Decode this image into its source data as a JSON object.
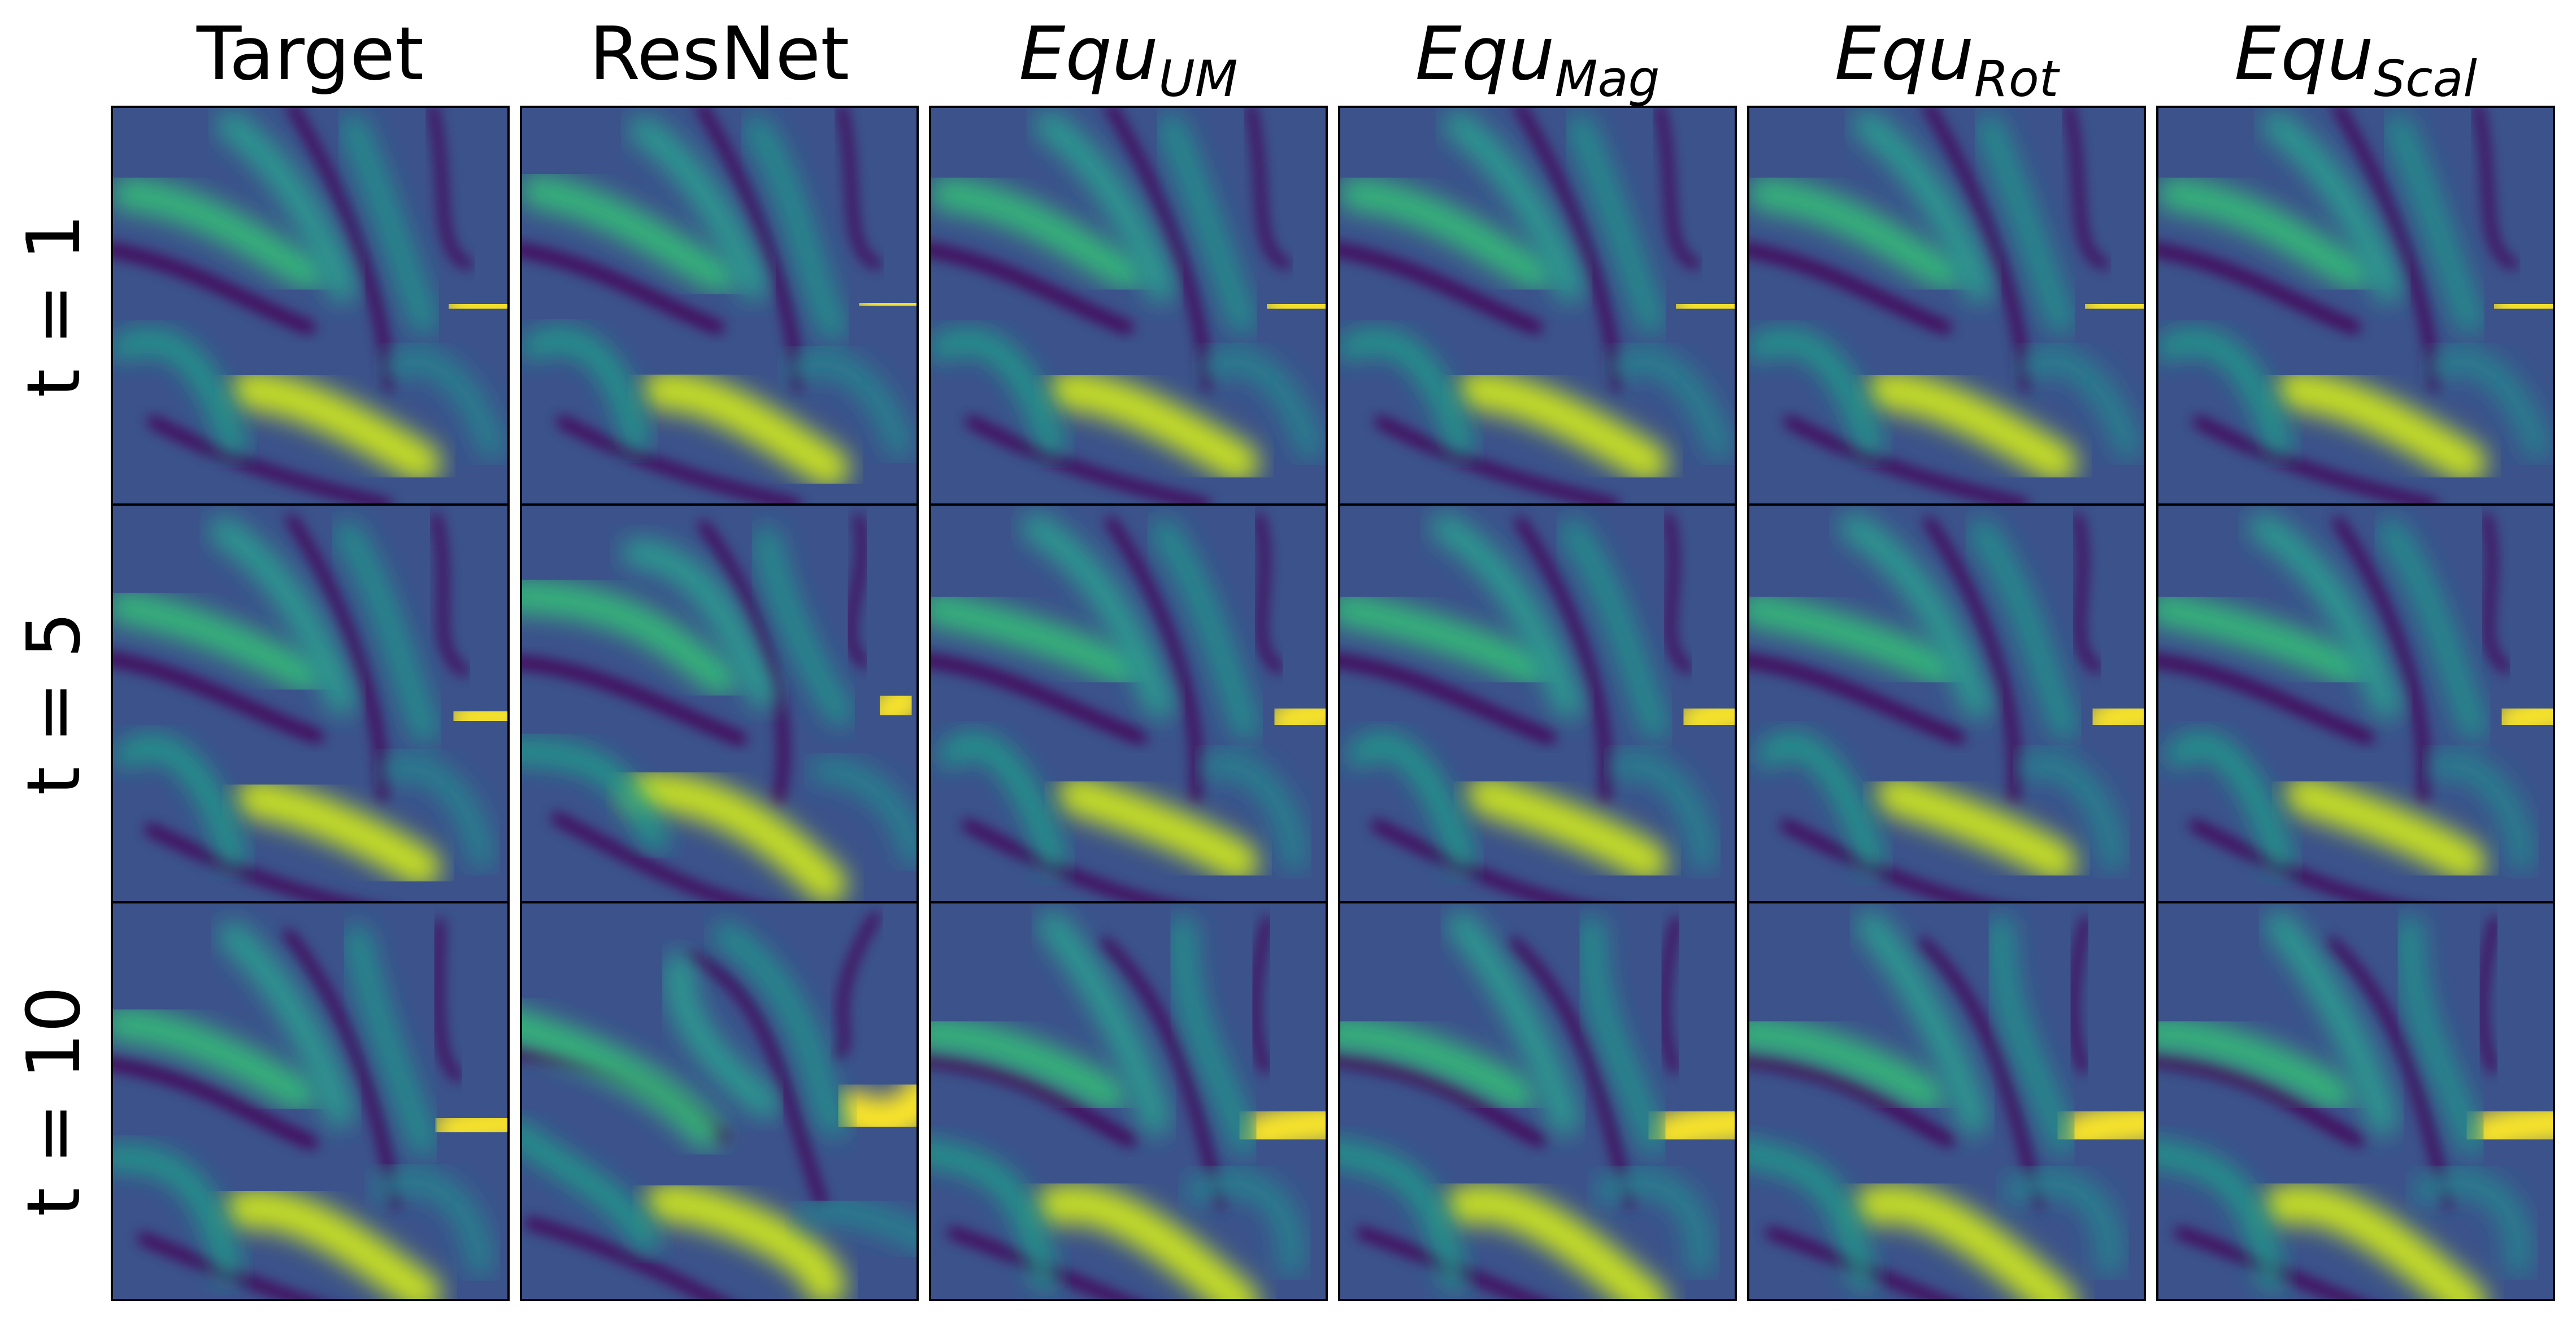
{
  "columns": [
    {
      "label": "Target"
    },
    {
      "label": "ResNet"
    },
    {
      "label": "Equ",
      "subscript": "UM"
    },
    {
      "label": "Equ",
      "subscript": "Mag"
    },
    {
      "label": "Equ",
      "subscript": "Rot"
    },
    {
      "label": "Equ",
      "subscript": "Scal"
    }
  ],
  "rows": [
    {
      "label": "t = 1"
    },
    {
      "label": "t = 5"
    },
    {
      "label": "t = 10"
    }
  ]
}
